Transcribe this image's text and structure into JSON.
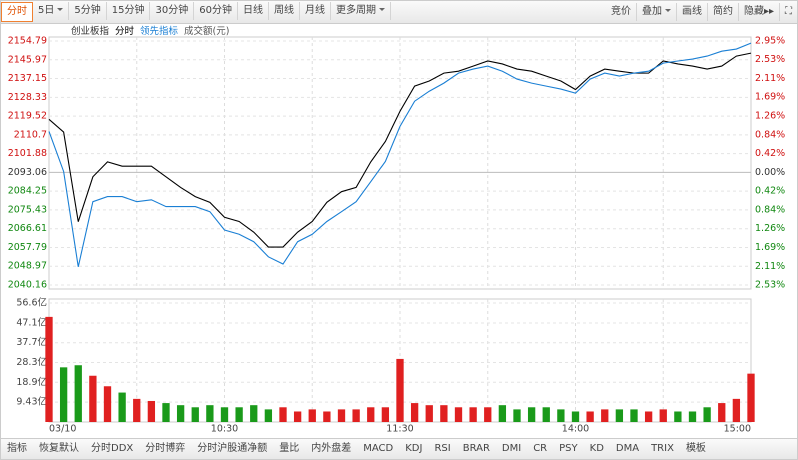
{
  "toolbar": {
    "periods": [
      {
        "label": "分时",
        "active": true
      },
      {
        "label": "5日",
        "dropdown": true
      },
      {
        "label": "5分钟"
      },
      {
        "label": "15分钟"
      },
      {
        "label": "30分钟"
      },
      {
        "label": "60分钟"
      },
      {
        "label": "日线"
      },
      {
        "label": "周线"
      },
      {
        "label": "月线"
      },
      {
        "label": "更多周期",
        "dropdown": true
      }
    ],
    "tools": [
      {
        "label": "竞价"
      },
      {
        "label": "叠加",
        "dropdown": true
      },
      {
        "label": "画线"
      },
      {
        "label": "简约"
      },
      {
        "label": "隐藏▸▸"
      }
    ]
  },
  "indicator_bar": [
    "指标",
    "恢复默认",
    "分时DDX",
    "分时博弈",
    "分时沪股通净额",
    "量比",
    "内外盘差",
    "MACD",
    "KDJ",
    "RSI",
    "BRAR",
    "DMI",
    "CR",
    "PSY",
    "KD",
    "DMA",
    "TRIX",
    "模板"
  ],
  "chart_data": [
    {
      "type": "line",
      "index_name": "创业板指",
      "categories": [
        "03/10",
        null,
        null,
        null,
        null,
        null,
        null,
        null,
        null,
        null,
        null,
        null,
        "10:30",
        null,
        null,
        null,
        null,
        null,
        null,
        null,
        null,
        null,
        null,
        null,
        "11:30",
        null,
        null,
        null,
        null,
        null,
        null,
        null,
        null,
        null,
        null,
        null,
        "14:00",
        null,
        null,
        null,
        null,
        null,
        null,
        null,
        null,
        null,
        null,
        null,
        "15:00"
      ],
      "series": [
        {
          "name": "分时",
          "color": "#000000",
          "values": [
            2118.0,
            2112.0,
            2069.9,
            2091.0,
            2098.0,
            2096.0,
            2096.0,
            2096.0,
            2091.0,
            2086.0,
            2081.7,
            2079.0,
            2072.0,
            2070.0,
            2065.0,
            2058.0,
            2058.0,
            2065.0,
            2070.0,
            2079.0,
            2084.0,
            2086.0,
            2098.0,
            2107.6,
            2121.8,
            2133.6,
            2136.0,
            2139.7,
            2140.6,
            2143.0,
            2145.4,
            2144.0,
            2141.6,
            2140.6,
            2138.3,
            2136.0,
            2132.0,
            2138.3,
            2141.6,
            2140.6,
            2139.7,
            2139.7,
            2145.4,
            2144.0,
            2143.0,
            2141.6,
            2143.0,
            2147.7,
            2149.1
          ]
        },
        {
          "name": "领先指标",
          "color": "#1a7fd4",
          "values": [
            2112.3,
            2093.5,
            2048.7,
            2079.3,
            2081.7,
            2081.7,
            2079.3,
            2080.2,
            2077.0,
            2077.0,
            2077.0,
            2074.6,
            2066.0,
            2064.0,
            2060.5,
            2053.4,
            2050.0,
            2060.5,
            2064.0,
            2070.0,
            2074.6,
            2079.3,
            2088.7,
            2098.2,
            2114.7,
            2126.5,
            2131.2,
            2135.0,
            2139.7,
            2141.6,
            2143.0,
            2140.6,
            2136.9,
            2135.0,
            2133.6,
            2132.2,
            2130.3,
            2136.9,
            2139.7,
            2138.3,
            2139.7,
            2140.6,
            2144.4,
            2145.4,
            2146.3,
            2147.7,
            2150.0,
            2151.0,
            2153.8
          ]
        }
      ],
      "ylim": [
        2040.16,
        2154.79
      ],
      "yticks": [
        2154.79,
        2145.97,
        2137.15,
        2128.33,
        2119.52,
        2110.7,
        2101.88,
        2093.06,
        2084.25,
        2075.43,
        2066.61,
        2057.79,
        2048.97,
        2040.16
      ],
      "y2lim": [
        -2.53,
        2.95
      ],
      "y2ticks": [
        {
          "value": 2.95,
          "label": "2.95%"
        },
        {
          "value": 2.53,
          "label": "2.53%"
        },
        {
          "value": 2.11,
          "label": "2.11%"
        },
        {
          "value": 1.69,
          "label": "1.69%"
        },
        {
          "value": 1.26,
          "label": "1.26%"
        },
        {
          "value": 0.84,
          "label": "0.84%"
        },
        {
          "value": 0.42,
          "label": "0.42%"
        },
        {
          "value": 0,
          "label": "0.00%"
        },
        {
          "value": -0.42,
          "label": "0.42%"
        },
        {
          "value": -0.84,
          "label": "0.84%"
        },
        {
          "value": -1.26,
          "label": "1.26%"
        },
        {
          "value": -1.69,
          "label": "1.69%"
        },
        {
          "value": -2.11,
          "label": "2.11%"
        },
        {
          "value": -2.53,
          "label": "2.53%"
        }
      ],
      "grid": true
    },
    {
      "type": "bar",
      "name": "成交额(元)",
      "values": [
        50,
        26,
        27,
        22,
        17,
        14,
        11,
        10,
        9,
        8,
        7,
        8,
        7,
        7,
        8,
        6,
        7,
        5,
        6,
        5,
        6,
        6,
        7,
        7,
        30,
        9,
        8,
        8,
        7,
        7,
        7,
        8,
        6,
        7,
        7,
        6,
        5,
        5,
        6,
        6,
        6,
        5,
        6,
        5,
        5,
        7,
        9,
        11,
        23
      ],
      "up_color": "#e02020",
      "down_color": "#1a9a1a",
      "ylim": [
        0,
        56.6
      ],
      "yticks": [
        {
          "value": 56.6,
          "label": "56.6亿"
        },
        {
          "value": 47.1,
          "label": "47.1亿"
        },
        {
          "value": 37.7,
          "label": "37.7亿"
        },
        {
          "value": 28.3,
          "label": "28.3亿"
        },
        {
          "value": 18.9,
          "label": "18.9亿"
        },
        {
          "value": 9.43,
          "label": "9.43亿"
        }
      ]
    }
  ]
}
